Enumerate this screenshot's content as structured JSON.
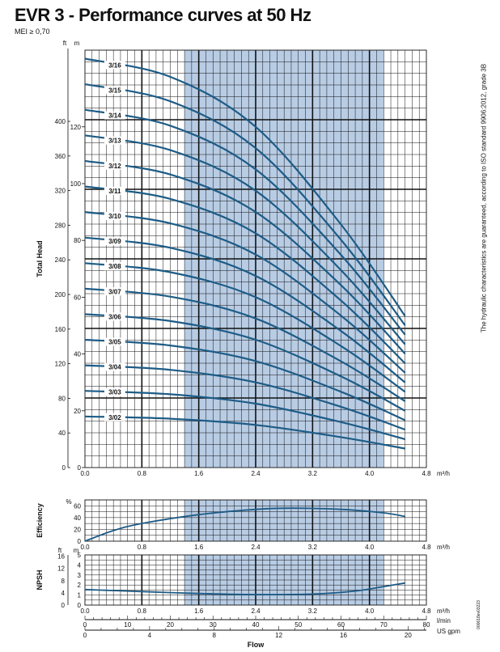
{
  "header": {
    "title": "EVR 3 - Performance curves at 50 Hz",
    "mei": "MEI ≥ 0,70",
    "side_note": "The hydraulic characteristics are guaranteed, according to ISO standard 9906:2012, grade 3B",
    "doc_code": "000618ev03223"
  },
  "colors": {
    "curve": "#1d5c87",
    "band": "#b8cce4",
    "grid": "#111111"
  },
  "chart_data": [
    {
      "type": "line",
      "name_key": "head",
      "ylabel": "Total Head",
      "xlabel": "m³/h",
      "xlim": [
        0,
        4.8
      ],
      "ylim": [
        0,
        147
      ],
      "x_ticks": [
        "0.0",
        "0.8",
        "1.6",
        "2.4",
        "3.2",
        "4.0",
        "4.8"
      ],
      "unit_m": "m",
      "unit_ft": "ft",
      "y_ticks_m": [
        "0",
        "20",
        "40",
        "60",
        "80",
        "100",
        "120"
      ],
      "y_ticks_ft": [
        "0",
        "40",
        "80",
        "120",
        "160",
        "200",
        "240",
        "280",
        "320",
        "360",
        "400"
      ],
      "band": [
        1.4,
        4.2
      ],
      "series": [
        {
          "name": "3/02",
          "values": [
            [
              0,
              18.0
            ],
            [
              1.2,
              17.2
            ],
            [
              2.4,
              15.0
            ],
            [
              3.6,
              10.7
            ],
            [
              4.5,
              6.7
            ]
          ]
        },
        {
          "name": "3/03",
          "values": [
            [
              0,
              27.0
            ],
            [
              1.2,
              25.8
            ],
            [
              2.4,
              22.5
            ],
            [
              3.6,
              16.0
            ],
            [
              4.5,
              10.0
            ]
          ]
        },
        {
          "name": "3/04",
          "values": [
            [
              0,
              36.0
            ],
            [
              1.2,
              34.4
            ],
            [
              2.4,
              30.0
            ],
            [
              3.6,
              21.4
            ],
            [
              4.5,
              13.4
            ]
          ]
        },
        {
          "name": "3/05",
          "values": [
            [
              0,
              45.0
            ],
            [
              1.2,
              43.0
            ],
            [
              2.4,
              37.5
            ],
            [
              3.6,
              26.7
            ],
            [
              4.5,
              16.7
            ]
          ]
        },
        {
          "name": "3/06",
          "values": [
            [
              0,
              54.0
            ],
            [
              1.2,
              51.6
            ],
            [
              2.4,
              45.0
            ],
            [
              3.6,
              32.1
            ],
            [
              4.5,
              20.0
            ]
          ]
        },
        {
          "name": "3/07",
          "values": [
            [
              0,
              63.0
            ],
            [
              1.2,
              60.2
            ],
            [
              2.4,
              52.5
            ],
            [
              3.6,
              37.4
            ],
            [
              4.5,
              23.4
            ]
          ]
        },
        {
          "name": "3/08",
          "values": [
            [
              0,
              72.0
            ],
            [
              1.2,
              68.8
            ],
            [
              2.4,
              60.0
            ],
            [
              3.6,
              42.8
            ],
            [
              4.5,
              26.7
            ]
          ]
        },
        {
          "name": "3/09",
          "values": [
            [
              0,
              81.0
            ],
            [
              1.2,
              77.4
            ],
            [
              2.4,
              67.5
            ],
            [
              3.6,
              48.1
            ],
            [
              4.5,
              30.0
            ]
          ]
        },
        {
          "name": "3/10",
          "values": [
            [
              0,
              90.0
            ],
            [
              1.2,
              86.0
            ],
            [
              2.4,
              75.0
            ],
            [
              3.6,
              53.5
            ],
            [
              4.5,
              33.4
            ]
          ]
        },
        {
          "name": "3/11",
          "values": [
            [
              0,
              99.0
            ],
            [
              1.2,
              94.6
            ],
            [
              2.4,
              82.5
            ],
            [
              3.6,
              58.8
            ],
            [
              4.5,
              36.7
            ]
          ]
        },
        {
          "name": "3/12",
          "values": [
            [
              0,
              108.0
            ],
            [
              1.2,
              103.2
            ],
            [
              2.4,
              90.0
            ],
            [
              3.6,
              64.2
            ],
            [
              4.5,
              40.1
            ]
          ]
        },
        {
          "name": "3/13",
          "values": [
            [
              0,
              117.0
            ],
            [
              1.2,
              111.8
            ],
            [
              2.4,
              97.5
            ],
            [
              3.6,
              69.5
            ],
            [
              4.5,
              43.4
            ]
          ]
        },
        {
          "name": "3/14",
          "values": [
            [
              0,
              126.0
            ],
            [
              1.2,
              120.4
            ],
            [
              2.4,
              105.0
            ],
            [
              3.6,
              74.9
            ],
            [
              4.5,
              46.8
            ]
          ]
        },
        {
          "name": "3/15",
          "values": [
            [
              0,
              135.0
            ],
            [
              1.2,
              129.0
            ],
            [
              2.4,
              112.5
            ],
            [
              3.6,
              80.2
            ],
            [
              4.5,
              50.1
            ]
          ]
        },
        {
          "name": "3/16",
          "values": [
            [
              0,
              144.0
            ],
            [
              1.2,
              137.6
            ],
            [
              2.4,
              120.0
            ],
            [
              3.6,
              85.6
            ],
            [
              4.5,
              53.4
            ]
          ]
        }
      ]
    },
    {
      "type": "line",
      "name_key": "efficiency",
      "ylabel": "Efficiency",
      "xlabel": "m³/h",
      "unit": "%",
      "xlim": [
        0,
        4.8
      ],
      "ylim": [
        0,
        70
      ],
      "x_ticks": [
        "0.0",
        "0.8",
        "1.6",
        "2.4",
        "3.2",
        "4.0",
        "4.8"
      ],
      "y_ticks": [
        "0",
        "20",
        "40",
        "60"
      ],
      "band": [
        1.4,
        4.2
      ],
      "series": [
        {
          "values": [
            [
              0,
              0
            ],
            [
              0.4,
              18
            ],
            [
              0.8,
              30
            ],
            [
              1.6,
              45
            ],
            [
              2.4,
              54
            ],
            [
              2.9,
              56
            ],
            [
              3.6,
              54
            ],
            [
              4.2,
              48
            ],
            [
              4.5,
              42
            ]
          ]
        }
      ]
    },
    {
      "type": "line",
      "name_key": "npsh",
      "ylabel": "NPSH",
      "xlabel": "m³/h",
      "unit_m": "m",
      "unit_ft": "ft",
      "xlim": [
        0,
        4.8
      ],
      "ylim": [
        0,
        5
      ],
      "x_ticks": [
        "0.0",
        "0.8",
        "1.6",
        "2.4",
        "3.2",
        "4.0",
        "4.8"
      ],
      "y_ticks_m": [
        "0",
        "1",
        "2",
        "3",
        "4",
        "5"
      ],
      "y_ticks_ft": [
        "0",
        "4",
        "8",
        "12",
        "16"
      ],
      "band": [
        1.4,
        4.2
      ],
      "series": [
        {
          "values": [
            [
              0,
              1.55
            ],
            [
              0.8,
              1.35
            ],
            [
              1.6,
              1.15
            ],
            [
              2.4,
              1.05
            ],
            [
              3.2,
              1.1
            ],
            [
              3.8,
              1.4
            ],
            [
              4.2,
              1.85
            ],
            [
              4.5,
              2.2
            ]
          ]
        }
      ]
    }
  ],
  "flow_axes": {
    "xlabel": "Flow",
    "lmin_unit": "l/min",
    "lmin_ticks": [
      "0",
      "10",
      "20",
      "30",
      "40",
      "50",
      "60",
      "70",
      "80"
    ],
    "gpm_unit": "US gpm",
    "gpm_ticks": [
      "0",
      "4",
      "8",
      "12",
      "16",
      "20"
    ]
  }
}
